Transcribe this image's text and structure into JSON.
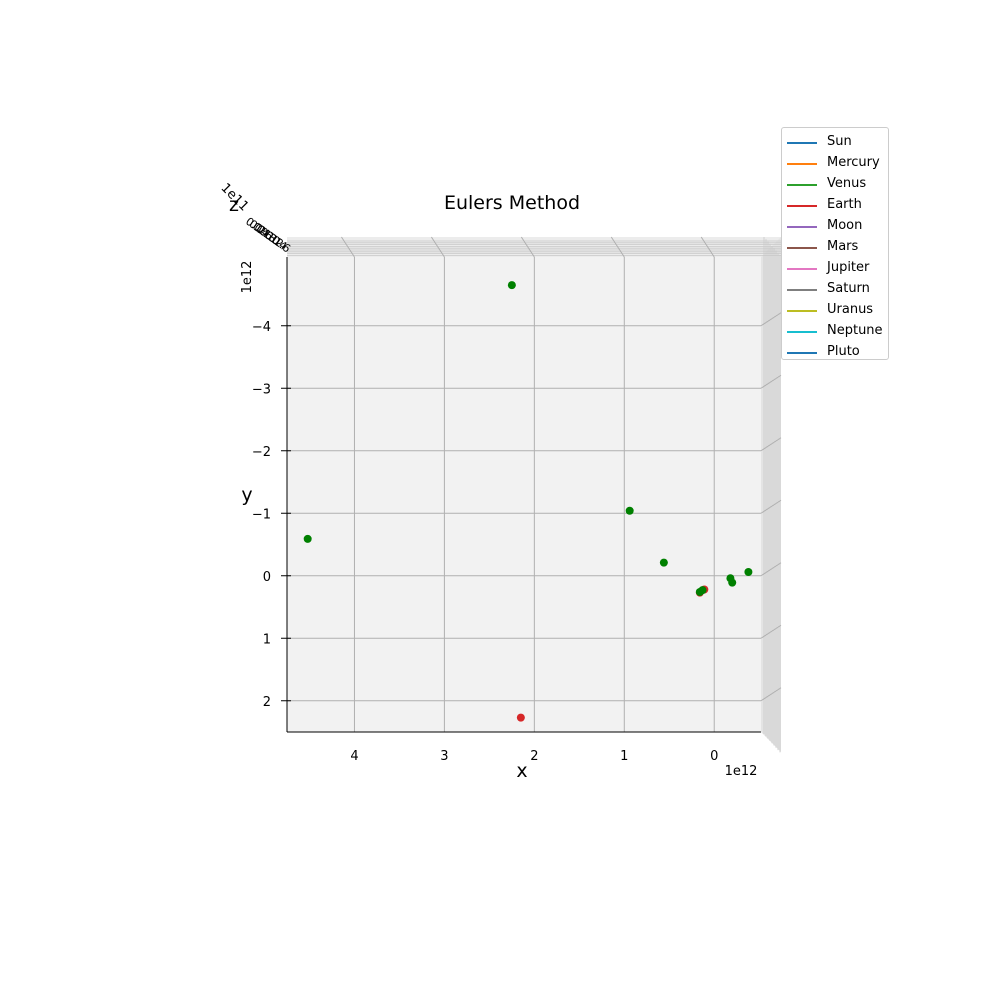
{
  "chart_data": {
    "type": "scatter",
    "projection": "3d",
    "title": "Eulers Method",
    "xlabel": "x",
    "ylabel": "y",
    "zlabel": "z",
    "x_offset_label": "1e12",
    "y_offset_label": "1e12",
    "z_offset_label": "1e11",
    "x_ticks": [
      "4",
      "3",
      "2",
      "1",
      "0"
    ],
    "y_ticks": [
      "−4",
      "−3",
      "−2",
      "−1",
      "0",
      "1",
      "2"
    ],
    "z_ticks": [
      "0.0",
      "0.2",
      "0.4",
      "0.6",
      "0.8",
      "1.0",
      "1.2",
      "1.4",
      "1.6"
    ],
    "xlim": [
      4.75,
      -0.52
    ],
    "ylim": [
      -5.1,
      2.5
    ],
    "grid": true,
    "legend_position": "top-right",
    "legend": [
      {
        "name": "Sun",
        "color": "#1f77b4"
      },
      {
        "name": "Mercury",
        "color": "#ff7f0e"
      },
      {
        "name": "Venus",
        "color": "#2ca02c"
      },
      {
        "name": "Earth",
        "color": "#d62728"
      },
      {
        "name": "Moon",
        "color": "#9467bd"
      },
      {
        "name": "Mars",
        "color": "#8c564b"
      },
      {
        "name": "Jupiter",
        "color": "#e377c2"
      },
      {
        "name": "Saturn",
        "color": "#7f7f7f"
      },
      {
        "name": "Uranus",
        "color": "#bcbd22"
      },
      {
        "name": "Neptune",
        "color": "#17becf"
      },
      {
        "name": "Pluto",
        "color": "#1f77b4"
      }
    ],
    "series": [
      {
        "color": "#d62728",
        "points": [
          [
            2.15,
            2.27
          ],
          [
            0.11,
            0.22
          ],
          [
            0.16,
            0.27
          ]
        ]
      },
      {
        "color": "#008000",
        "points": [
          [
            2.25,
            -4.65
          ],
          [
            0.94,
            -1.04
          ],
          [
            0.56,
            -0.21
          ],
          [
            -0.38,
            -0.06
          ],
          [
            -0.18,
            0.04
          ],
          [
            -0.2,
            0.11
          ],
          [
            0.13,
            0.23
          ],
          [
            0.16,
            0.26
          ],
          [
            4.52,
            -0.59
          ]
        ]
      }
    ]
  }
}
